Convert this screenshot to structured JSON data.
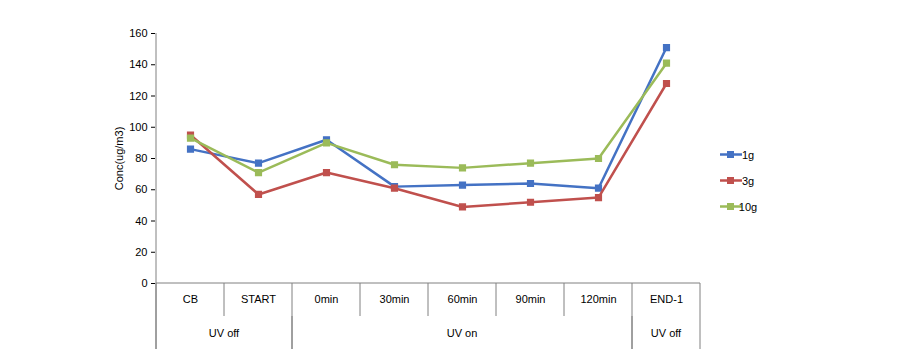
{
  "chart_data": {
    "type": "line",
    "y_label": "Conc(ug/m3)",
    "categories": [
      "CB",
      "START",
      "0min",
      "30min",
      "60min",
      "90min",
      "120min",
      "END-1"
    ],
    "groups": [
      {
        "name": "UV off",
        "categories": [
          "CB",
          "START"
        ]
      },
      {
        "name": "UV on",
        "categories": [
          "0min",
          "30min",
          "60min",
          "90min",
          "120min"
        ]
      },
      {
        "name": "UV off",
        "categories": [
          "END-1"
        ]
      }
    ],
    "series": [
      {
        "name": "1g",
        "color": "#4472c4",
        "marker": "square",
        "values": [
          86,
          77,
          92,
          62,
          63,
          64,
          61,
          151
        ]
      },
      {
        "name": "3g",
        "color": "#c0504d",
        "marker": "square",
        "values": [
          95,
          57,
          71,
          61,
          49,
          52,
          55,
          128
        ]
      },
      {
        "name": "10g",
        "color": "#9bbb59",
        "marker": "square",
        "values": [
          93,
          71,
          90,
          76,
          74,
          77,
          80,
          141
        ]
      }
    ],
    "ylim": [
      0,
      160
    ],
    "yticks": [
      0,
      20,
      40,
      60,
      80,
      100,
      120,
      140,
      160
    ],
    "grid": false,
    "legend": "right"
  }
}
